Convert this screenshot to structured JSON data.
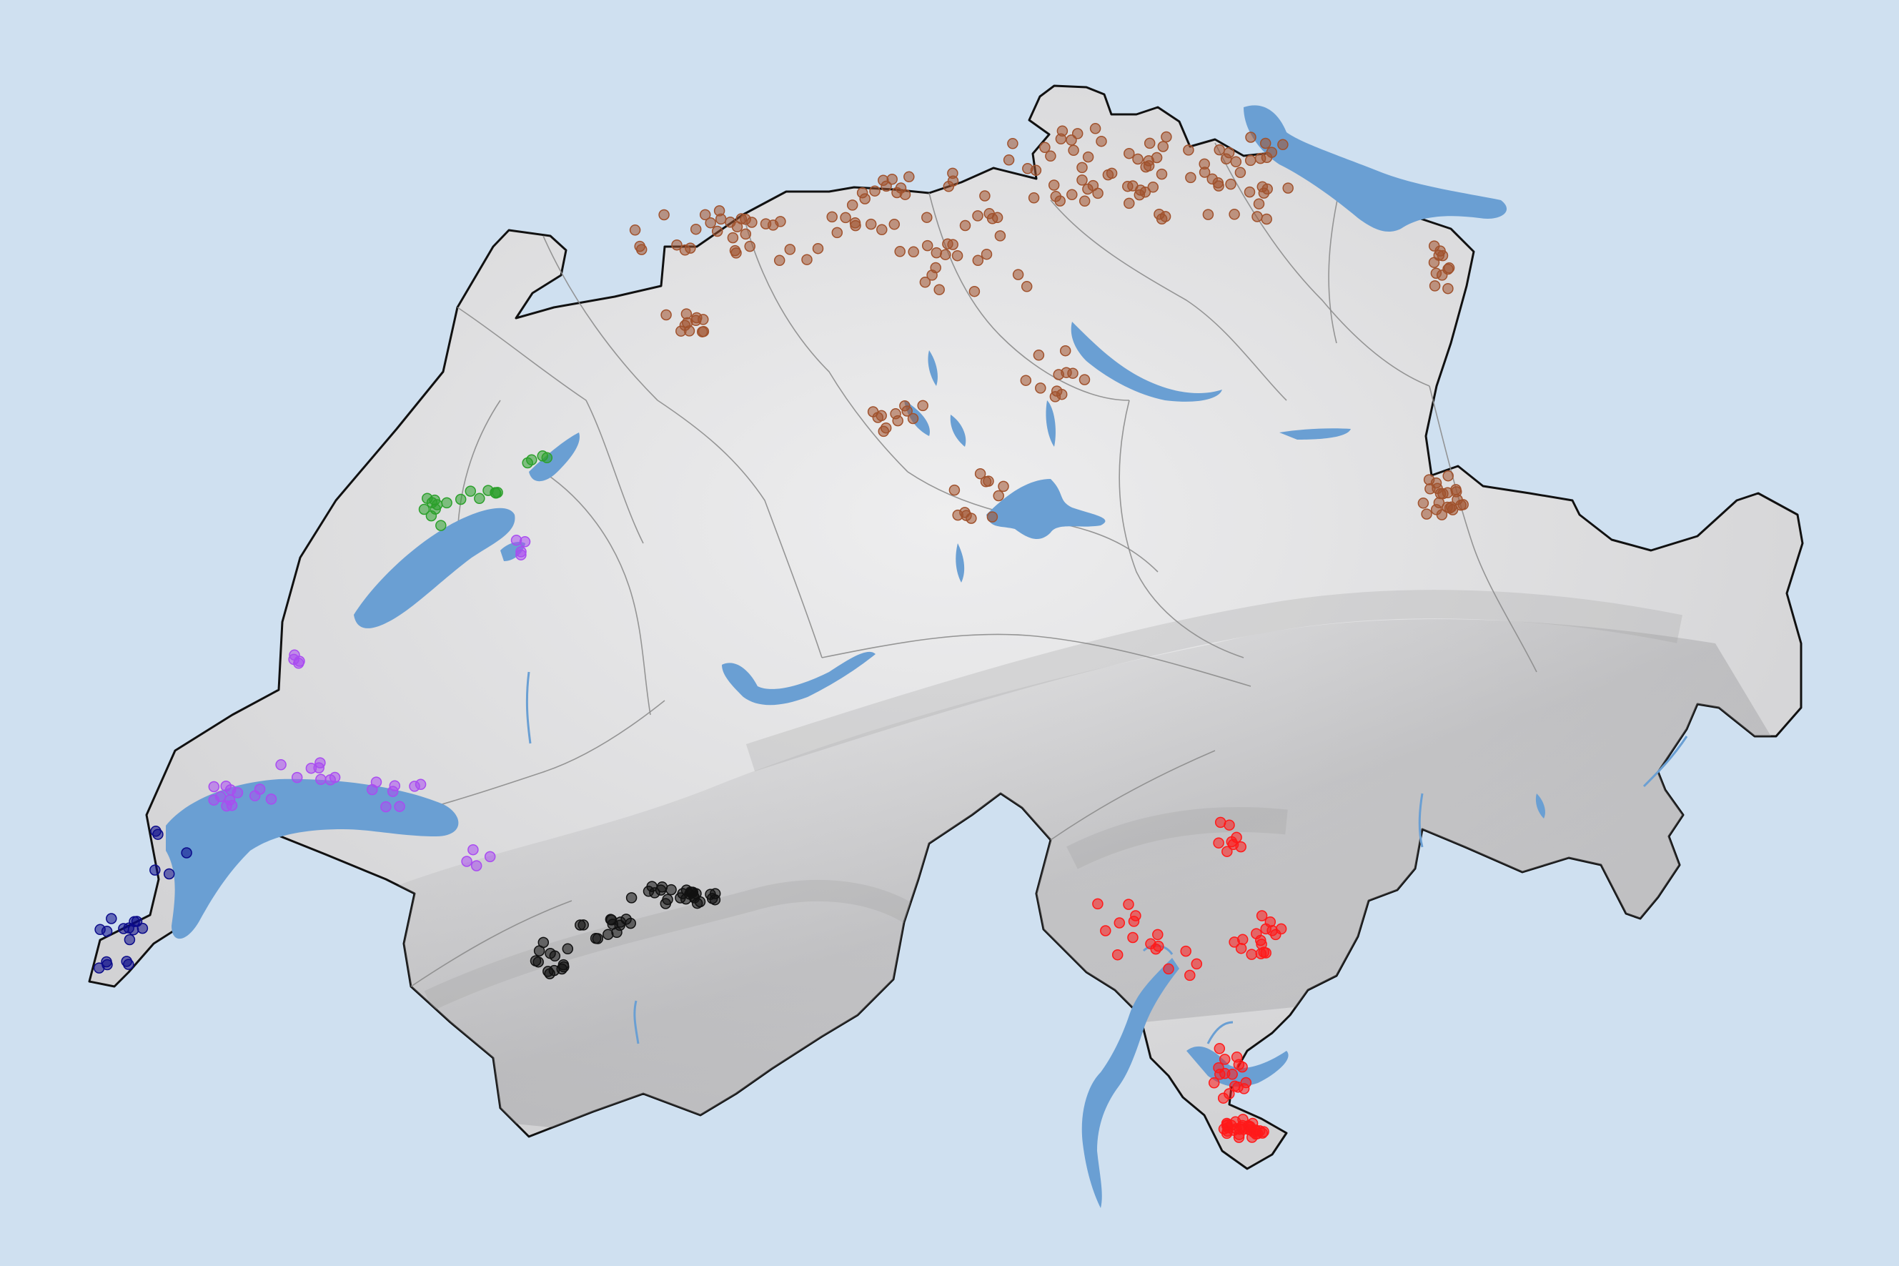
{
  "map": {
    "colors": {
      "background": "#cfe0f0",
      "land": "#d9d9db",
      "border": "#111111",
      "canton_lines": "#8c8c8c",
      "water": "#6a9fd3"
    },
    "groups": [
      {
        "id": "northeast",
        "color": "#a0522d",
        "point_count": 230
      },
      {
        "id": "jura-lakes",
        "color": "#2ca02c",
        "point_count": 20
      },
      {
        "id": "romandie",
        "color": "#a94cf0",
        "point_count": 40
      },
      {
        "id": "geneva",
        "color": "#0b0b8a",
        "point_count": 20
      },
      {
        "id": "valais",
        "color": "#111111",
        "point_count": 50
      },
      {
        "id": "ticino",
        "color": "#ff1a1a",
        "point_count": 90
      }
    ]
  }
}
